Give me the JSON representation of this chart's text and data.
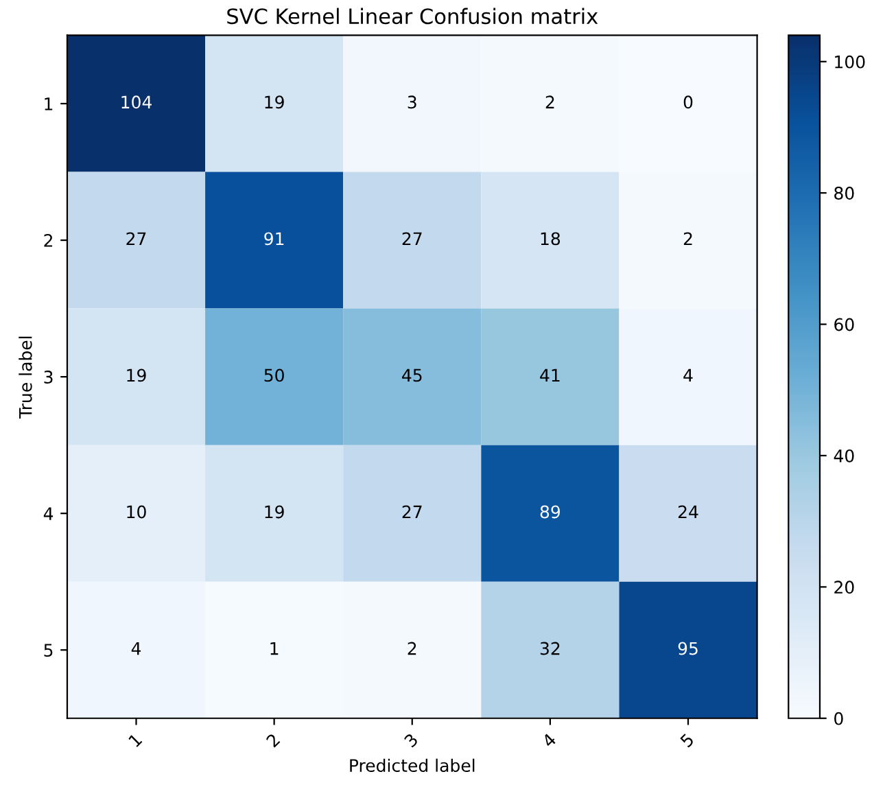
{
  "chart_data": {
    "type": "heatmap",
    "title": "SVC Kernel Linear Confusion matrix",
    "xlabel": "Predicted label",
    "ylabel": "True label",
    "categories": [
      "1",
      "2",
      "3",
      "4",
      "5"
    ],
    "y_categories": [
      "1",
      "2",
      "3",
      "4",
      "5"
    ],
    "cells": [
      [
        104,
        19,
        3,
        2,
        0
      ],
      [
        27,
        91,
        27,
        18,
        2
      ],
      [
        19,
        50,
        45,
        41,
        4
      ],
      [
        10,
        19,
        27,
        89,
        24
      ],
      [
        4,
        1,
        2,
        32,
        95
      ]
    ],
    "data_labels": true,
    "clim": [
      0,
      104
    ],
    "cticks": [
      0,
      20,
      40,
      60,
      80,
      100
    ],
    "grid": false
  }
}
